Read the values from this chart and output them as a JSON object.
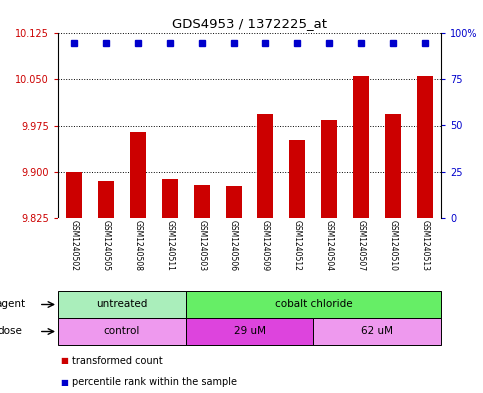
{
  "title": "GDS4953 / 1372225_at",
  "samples": [
    "GSM1240502",
    "GSM1240505",
    "GSM1240508",
    "GSM1240511",
    "GSM1240503",
    "GSM1240506",
    "GSM1240509",
    "GSM1240512",
    "GSM1240504",
    "GSM1240507",
    "GSM1240510",
    "GSM1240513"
  ],
  "bar_values": [
    9.9,
    9.885,
    9.965,
    9.888,
    9.878,
    9.877,
    9.993,
    9.952,
    9.984,
    10.055,
    9.993,
    10.055
  ],
  "bar_color": "#cc0000",
  "dot_color": "#0000cc",
  "ylim_left": [
    9.825,
    10.125
  ],
  "ylim_right": [
    0,
    100
  ],
  "yticks_left": [
    9.825,
    9.9,
    9.975,
    10.05,
    10.125
  ],
  "yticks_right": [
    0,
    25,
    50,
    75,
    100
  ],
  "agent_groups": [
    {
      "label": "untreated",
      "start": 0,
      "end": 4,
      "color": "#aaeebb"
    },
    {
      "label": "cobalt chloride",
      "start": 4,
      "end": 12,
      "color": "#66ee66"
    }
  ],
  "dose_groups": [
    {
      "label": "control",
      "start": 0,
      "end": 4,
      "color": "#ee99ee"
    },
    {
      "label": "29 uM",
      "start": 4,
      "end": 8,
      "color": "#dd44dd"
    },
    {
      "label": "62 uM",
      "start": 8,
      "end": 12,
      "color": "#ee99ee"
    }
  ],
  "legend_items": [
    {
      "label": "transformed count",
      "color": "#cc0000"
    },
    {
      "label": "percentile rank within the sample",
      "color": "#0000cc"
    }
  ],
  "left_tick_color": "#cc0000",
  "right_tick_color": "#0000cc",
  "sample_bg": "#cccccc",
  "plot_bg": "#ffffff"
}
